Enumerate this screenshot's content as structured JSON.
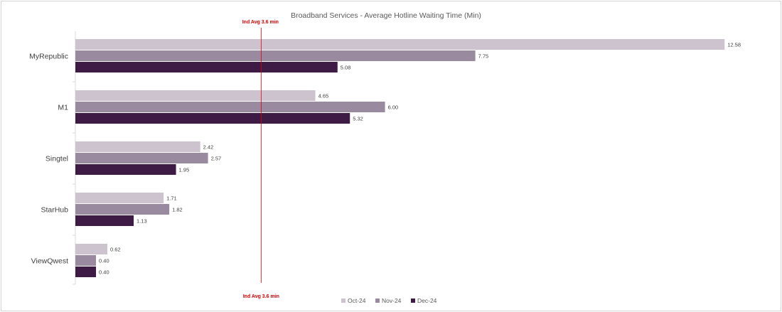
{
  "chart_data": {
    "type": "bar",
    "orientation": "horizontal",
    "title": "Broadband Services - Average Hotline Waiting Time (Min)",
    "categories": [
      "MyRepublic",
      "M1",
      "Singtel",
      "StarHub",
      "ViewQwest"
    ],
    "series": [
      {
        "name": "Oct-24",
        "color": "#cdc3cf",
        "values": [
          12.58,
          4.65,
          2.42,
          1.71,
          0.62
        ],
        "labels": [
          "12.58",
          "4.65",
          "2.42",
          "1.71",
          "0.62"
        ]
      },
      {
        "name": "Nov-24",
        "color": "#9a8a9f",
        "values": [
          7.75,
          6.0,
          2.57,
          1.82,
          0.4
        ],
        "labels": [
          "7.75",
          "6.00",
          "2.57",
          "1.82",
          "0.40"
        ]
      },
      {
        "name": "Dec-24",
        "color": "#3e1b45",
        "values": [
          5.08,
          5.32,
          1.95,
          1.13,
          0.4
        ],
        "labels": [
          "5.08",
          "5.32",
          "1.95",
          "1.13",
          "0.40"
        ]
      }
    ],
    "xlim": [
      0,
      13.1
    ],
    "reference_line": {
      "value": 3.6,
      "label": "Ind Avg 3.6 min",
      "color": "#e00000"
    },
    "legend_position": "bottom",
    "grid": false
  }
}
